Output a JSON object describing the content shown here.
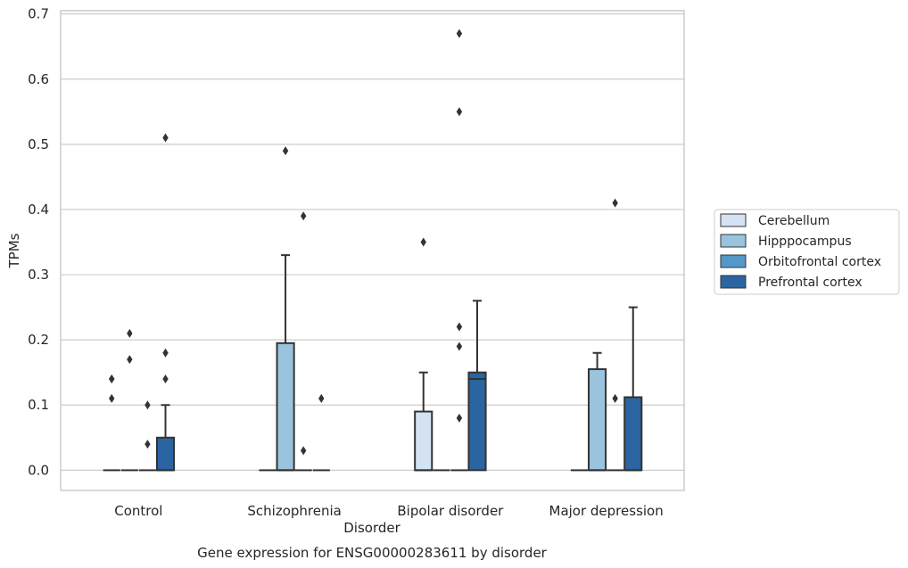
{
  "chart_data": {
    "type": "box",
    "title": "",
    "caption": "Gene expression for ENSG00000283611 by disorder",
    "xlabel": "Disorder",
    "ylabel": "TPMs",
    "ylim": [
      -0.031,
      0.705
    ],
    "yticks": [
      "0.0",
      "0.1",
      "0.2",
      "0.3",
      "0.4",
      "0.5",
      "0.6",
      "0.7"
    ],
    "grid": true,
    "legend_position": "right",
    "categories": [
      "Control",
      "Schizophrenia",
      "Bipolar disorder",
      "Major depression"
    ],
    "series": [
      {
        "name": "Cerebellum",
        "color": "#d3e3f2",
        "boxes": [
          {
            "q1": 0,
            "median": 0,
            "q3": 0,
            "whisker_low": 0,
            "whisker_high": 0,
            "outliers": [
              0.11,
              0.14,
              0.14
            ]
          },
          {
            "q1": 0,
            "median": 0,
            "q3": 0,
            "whisker_low": 0,
            "whisker_high": 0,
            "outliers": []
          },
          {
            "q1": 0,
            "median": 0,
            "q3": 0.09,
            "whisker_low": 0,
            "whisker_high": 0.15,
            "outliers": [
              0.35
            ]
          },
          {
            "q1": 0,
            "median": 0,
            "q3": 0,
            "whisker_low": 0,
            "whisker_high": 0,
            "outliers": []
          }
        ]
      },
      {
        "name": "Hipppocampus",
        "color": "#9ac4dd",
        "boxes": [
          {
            "q1": 0,
            "median": 0,
            "q3": 0,
            "whisker_low": 0,
            "whisker_high": 0,
            "outliers": [
              0.17,
              0.21
            ]
          },
          {
            "q1": 0,
            "median": 0,
            "q3": 0.195,
            "whisker_low": 0,
            "whisker_high": 0.33,
            "outliers": [
              0.49
            ]
          },
          {
            "q1": 0,
            "median": 0,
            "q3": 0,
            "whisker_low": 0,
            "whisker_high": 0,
            "outliers": []
          },
          {
            "q1": 0,
            "median": 0,
            "q3": 0.155,
            "whisker_low": 0,
            "whisker_high": 0.18,
            "outliers": []
          }
        ]
      },
      {
        "name": "Orbitofrontal cortex",
        "color": "#5597c9",
        "boxes": [
          {
            "q1": 0,
            "median": 0,
            "q3": 0,
            "whisker_low": 0,
            "whisker_high": 0,
            "outliers": [
              0.04,
              0.1
            ]
          },
          {
            "q1": 0,
            "median": 0,
            "q3": 0,
            "whisker_low": 0,
            "whisker_high": 0,
            "outliers": [
              0.03,
              0.39
            ]
          },
          {
            "q1": 0,
            "median": 0,
            "q3": 0,
            "whisker_low": 0,
            "whisker_high": 0,
            "outliers": [
              0.08,
              0.19,
              0.22,
              0.55,
              0.67
            ]
          },
          {
            "q1": 0,
            "median": 0,
            "q3": 0,
            "whisker_low": 0,
            "whisker_high": 0,
            "outliers": [
              0.11,
              0.41
            ]
          }
        ]
      },
      {
        "name": "Prefrontal cortex",
        "color": "#2a65a1",
        "boxes": [
          {
            "q1": 0,
            "median": 0,
            "q3": 0.05,
            "whisker_low": 0,
            "whisker_high": 0.1,
            "outliers": [
              0.14,
              0.18,
              0.51
            ]
          },
          {
            "q1": 0,
            "median": 0,
            "q3": 0,
            "whisker_low": 0,
            "whisker_high": 0,
            "outliers": [
              0.11
            ]
          },
          {
            "q1": 0,
            "median": 0.14,
            "q3": 0.15,
            "whisker_low": 0,
            "whisker_high": 0.26,
            "outliers": []
          },
          {
            "q1": 0,
            "median": 0,
            "q3": 0.112,
            "whisker_low": 0,
            "whisker_high": 0.25,
            "outliers": []
          }
        ]
      }
    ]
  }
}
